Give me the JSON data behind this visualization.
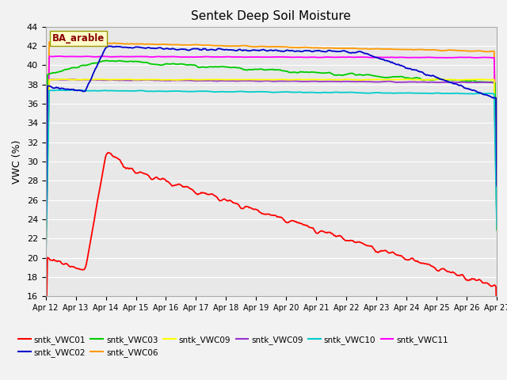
{
  "title": "Sentek Deep Soil Moisture",
  "ylabel": "VWC (%)",
  "annotation": "BA_arable",
  "ylim": [
    16,
    44
  ],
  "yticks": [
    16,
    18,
    20,
    22,
    24,
    26,
    28,
    30,
    32,
    34,
    36,
    38,
    40,
    42,
    44
  ],
  "bg_color": "#e8e8e8",
  "fig_bg_color": "#f2f2f2",
  "series": {
    "sntk_VWC01": {
      "color": "#ff0000",
      "label": "sntk_VWC01"
    },
    "sntk_VWC02": {
      "color": "#0000cc",
      "label": "sntk_VWC02"
    },
    "sntk_VWC03": {
      "color": "#00cc00",
      "label": "sntk_VWC03"
    },
    "sntk_VWC06": {
      "color": "#ff9900",
      "label": "sntk_VWC06"
    },
    "sntk_VWC09a": {
      "color": "#ffff00",
      "label": "sntk_VWC09"
    },
    "sntk_VWC09b": {
      "color": "#9933cc",
      "label": "sntk_VWC09"
    },
    "sntk_VWC10": {
      "color": "#00cccc",
      "label": "sntk_VWC10"
    },
    "sntk_VWC11": {
      "color": "#ff00ff",
      "label": "sntk_VWC11"
    }
  },
  "n_points": 500
}
